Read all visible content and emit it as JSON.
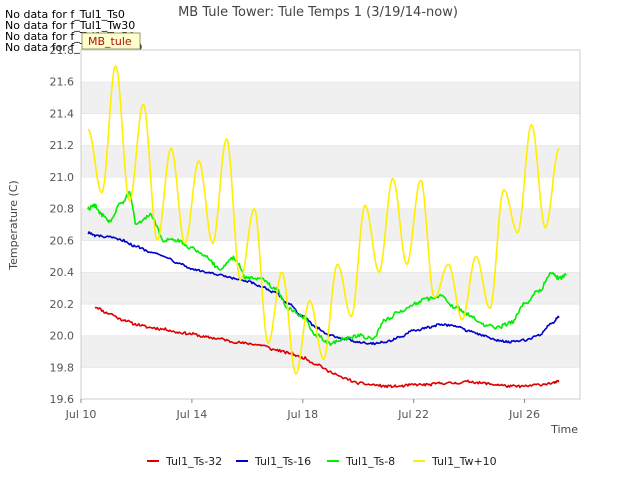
{
  "chart_data": {
    "type": "line",
    "title": "MB Tule Tower: Tule Temps 1 (3/19/14-now)",
    "xlabel": "Time",
    "ylabel": "Temperature (C)",
    "x_ticks": [
      {
        "day": 10,
        "label": "Jul 10"
      },
      {
        "day": 14,
        "label": "Jul 14"
      },
      {
        "day": 18,
        "label": "Jul 18"
      },
      {
        "day": 22,
        "label": "Jul 22"
      },
      {
        "day": 26,
        "label": "Jul 26"
      }
    ],
    "xlim": [
      "Jul 10",
      "Jul 28"
    ],
    "ylim": [
      19.6,
      21.8
    ],
    "y_ticks": [
      19.6,
      19.8,
      20.0,
      20.2,
      20.4,
      20.6,
      20.8,
      21.0,
      21.2,
      21.4,
      21.6,
      21.8
    ],
    "grid": "horizontal bands",
    "legend_position": "bottom",
    "no_data_messages": [
      "No data for f_Tul1_Ts0",
      "No data for f_Tul1_Tw30",
      "No data for f_Tul1_Tw50",
      "No data for f_Tul1_Tw100"
    ],
    "tag_label": "MB_tule",
    "series": [
      {
        "name": "Tul1_Ts-32",
        "color": "#dd0000",
        "points": [
          [
            "Jul 10 12:00",
            20.18
          ],
          [
            "Jul 11 00:00",
            20.14
          ],
          [
            "Jul 11 12:00",
            20.1
          ],
          [
            "Jul 12 00:00",
            20.07
          ],
          [
            "Jul 12 12:00",
            20.05
          ],
          [
            "Jul 13 00:00",
            20.04
          ],
          [
            "Jul 13 12:00",
            20.02
          ],
          [
            "Jul 14 00:00",
            20.01
          ],
          [
            "Jul 14 12:00",
            19.99
          ],
          [
            "Jul 15 00:00",
            19.98
          ],
          [
            "Jul 15 12:00",
            19.96
          ],
          [
            "Jul 16 00:00",
            19.95
          ],
          [
            "Jul 16 12:00",
            19.94
          ],
          [
            "Jul 17 00:00",
            19.91
          ],
          [
            "Jul 17 12:00",
            19.89
          ],
          [
            "Jul 18 00:00",
            19.86
          ],
          [
            "Jul 18 12:00",
            19.82
          ],
          [
            "Jul 19 00:00",
            19.77
          ],
          [
            "Jul 19 12:00",
            19.73
          ],
          [
            "Jul 20 00:00",
            19.7
          ],
          [
            "Jul 20 12:00",
            19.69
          ],
          [
            "Jul 21 00:00",
            19.68
          ],
          [
            "Jul 21 12:00",
            19.68
          ],
          [
            "Jul 22 00:00",
            19.69
          ],
          [
            "Jul 22 12:00",
            19.69
          ],
          [
            "Jul 23 00:00",
            19.7
          ],
          [
            "Jul 23 12:00",
            19.7
          ],
          [
            "Jul 24 00:00",
            19.71
          ],
          [
            "Jul 24 12:00",
            19.7
          ],
          [
            "Jul 25 00:00",
            19.69
          ],
          [
            "Jul 25 12:00",
            19.68
          ],
          [
            "Jul 26 00:00",
            19.68
          ],
          [
            "Jul 26 12:00",
            19.69
          ],
          [
            "Jul 27 00:00",
            19.7
          ],
          [
            "Jul 27 06:00",
            19.71
          ]
        ]
      },
      {
        "name": "Tul1_Ts-16",
        "color": "#0000cc",
        "points": [
          [
            "Jul 10 06:00",
            20.65
          ],
          [
            "Jul 10 12:00",
            20.63
          ],
          [
            "Jul 11 00:00",
            20.62
          ],
          [
            "Jul 11 12:00",
            20.6
          ],
          [
            "Jul 12 00:00",
            20.56
          ],
          [
            "Jul 12 12:00",
            20.53
          ],
          [
            "Jul 13 00:00",
            20.5
          ],
          [
            "Jul 13 12:00",
            20.46
          ],
          [
            "Jul 14 00:00",
            20.42
          ],
          [
            "Jul 14 12:00",
            20.4
          ],
          [
            "Jul 15 00:00",
            20.38
          ],
          [
            "Jul 15 12:00",
            20.36
          ],
          [
            "Jul 16 00:00",
            20.34
          ],
          [
            "Jul 16 12:00",
            20.31
          ],
          [
            "Jul 17 00:00",
            20.27
          ],
          [
            "Jul 17 12:00",
            20.2
          ],
          [
            "Jul 18 00:00",
            20.12
          ],
          [
            "Jul 18 12:00",
            20.05
          ],
          [
            "Jul 19 00:00",
            20.0
          ],
          [
            "Jul 19 12:00",
            19.98
          ],
          [
            "Jul 20 00:00",
            19.96
          ],
          [
            "Jul 20 12:00",
            19.95
          ],
          [
            "Jul 21 00:00",
            19.96
          ],
          [
            "Jul 21 12:00",
            19.99
          ],
          [
            "Jul 22 00:00",
            20.03
          ],
          [
            "Jul 22 12:00",
            20.05
          ],
          [
            "Jul 23 00:00",
            20.07
          ],
          [
            "Jul 23 12:00",
            20.06
          ],
          [
            "Jul 24 00:00",
            20.03
          ],
          [
            "Jul 24 12:00",
            20.0
          ],
          [
            "Jul 25 00:00",
            19.97
          ],
          [
            "Jul 25 12:00",
            19.96
          ],
          [
            "Jul 26 00:00",
            19.97
          ],
          [
            "Jul 26 12:00",
            20.0
          ],
          [
            "Jul 27 00:00",
            20.08
          ],
          [
            "Jul 27 06:00",
            20.12
          ]
        ]
      },
      {
        "name": "Tul1_Ts-8",
        "color": "#00ee00",
        "points": [
          [
            "Jul 10 06:00",
            20.8
          ],
          [
            "Jul 10 12:00",
            20.82
          ],
          [
            "Jul 10 18:00",
            20.76
          ],
          [
            "Jul 11 00:00",
            20.72
          ],
          [
            "Jul 11 12:00",
            20.84
          ],
          [
            "Jul 11 18:00",
            20.9
          ],
          [
            "Jul 12 00:00",
            20.7
          ],
          [
            "Jul 12 12:00",
            20.76
          ],
          [
            "Jul 13 00:00",
            20.6
          ],
          [
            "Jul 13 12:00",
            20.6
          ],
          [
            "Jul 14 00:00",
            20.55
          ],
          [
            "Jul 14 12:00",
            20.5
          ],
          [
            "Jul 15 00:00",
            20.42
          ],
          [
            "Jul 15 12:00",
            20.49
          ],
          [
            "Jul 16 00:00",
            20.36
          ],
          [
            "Jul 16 12:00",
            20.36
          ],
          [
            "Jul 17 00:00",
            20.3
          ],
          [
            "Jul 17 12:00",
            20.17
          ],
          [
            "Jul 18 00:00",
            20.12
          ],
          [
            "Jul 18 12:00",
            20.0
          ],
          [
            "Jul 19 00:00",
            19.95
          ],
          [
            "Jul 19 12:00",
            19.98
          ],
          [
            "Jul 20 00:00",
            20.0
          ],
          [
            "Jul 20 12:00",
            19.98
          ],
          [
            "Jul 21 00:00",
            20.1
          ],
          [
            "Jul 21 12:00",
            20.15
          ],
          [
            "Jul 22 00:00",
            20.2
          ],
          [
            "Jul 22 12:00",
            20.23
          ],
          [
            "Jul 23 00:00",
            20.25
          ],
          [
            "Jul 23 12:00",
            20.18
          ],
          [
            "Jul 24 00:00",
            20.13
          ],
          [
            "Jul 24 12:00",
            20.07
          ],
          [
            "Jul 25 00:00",
            20.05
          ],
          [
            "Jul 25 12:00",
            20.08
          ],
          [
            "Jul 26 00:00",
            20.2
          ],
          [
            "Jul 26 12:00",
            20.28
          ],
          [
            "Jul 27 00:00",
            20.4
          ],
          [
            "Jul 27 06:00",
            20.36
          ],
          [
            "Jul 27 12:00",
            20.38
          ]
        ]
      },
      {
        "name": "Tul1_Tw+10",
        "color": "#ffee00",
        "points": [
          [
            "Jul 10 06:00",
            21.3
          ],
          [
            "Jul 10 18:00",
            20.9
          ],
          [
            "Jul 11 06:00",
            21.7
          ],
          [
            "Jul 11 18:00",
            20.85
          ],
          [
            "Jul 12 06:00",
            21.46
          ],
          [
            "Jul 12 18:00",
            20.6
          ],
          [
            "Jul 13 06:00",
            21.18
          ],
          [
            "Jul 13 18:00",
            20.58
          ],
          [
            "Jul 14 06:00",
            21.1
          ],
          [
            "Jul 14 18:00",
            20.58
          ],
          [
            "Jul 15 06:00",
            21.24
          ],
          [
            "Jul 15 18:00",
            20.35
          ],
          [
            "Jul 16 06:00",
            20.8
          ],
          [
            "Jul 16 18:00",
            19.95
          ],
          [
            "Jul 17 06:00",
            20.4
          ],
          [
            "Jul 17 18:00",
            19.76
          ],
          [
            "Jul 18 06:00",
            20.22
          ],
          [
            "Jul 18 18:00",
            19.85
          ],
          [
            "Jul 19 06:00",
            20.45
          ],
          [
            "Jul 19 18:00",
            20.12
          ],
          [
            "Jul 20 06:00",
            20.82
          ],
          [
            "Jul 20 18:00",
            20.4
          ],
          [
            "Jul 21 06:00",
            20.99
          ],
          [
            "Jul 21 18:00",
            20.45
          ],
          [
            "Jul 22 06:00",
            20.98
          ],
          [
            "Jul 22 18:00",
            20.24
          ],
          [
            "Jul 23 06:00",
            20.45
          ],
          [
            "Jul 23 18:00",
            20.1
          ],
          [
            "Jul 24 06:00",
            20.5
          ],
          [
            "Jul 24 18:00",
            20.17
          ],
          [
            "Jul 25 06:00",
            20.92
          ],
          [
            "Jul 25 18:00",
            20.65
          ],
          [
            "Jul 26 06:00",
            21.33
          ],
          [
            "Jul 26 18:00",
            20.68
          ],
          [
            "Jul 27 06:00",
            21.18
          ]
        ]
      }
    ]
  }
}
